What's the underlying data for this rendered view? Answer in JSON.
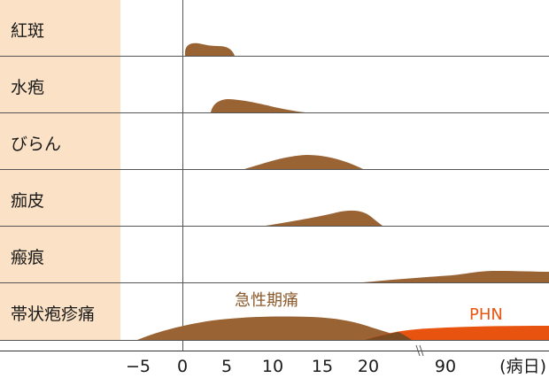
{
  "chart_data": {
    "type": "area",
    "title": "",
    "xlabel": "(病日)",
    "ylabel": "",
    "x_ticks": [
      "−5",
      "0",
      "5",
      "10",
      "15",
      "20",
      "90"
    ],
    "x_unit_label": "(病日)",
    "rows": [
      {
        "label": "紅斑",
        "onset": 0,
        "peak": 1.5,
        "end": 5.5
      },
      {
        "label": "水疱",
        "onset": 3,
        "peak": 5,
        "end": 13
      },
      {
        "label": "びらん",
        "onset": 7,
        "peak": 14,
        "end": 20
      },
      {
        "label": "痂皮",
        "onset": 9,
        "peak": 19,
        "end": 22
      },
      {
        "label": "瘢痕",
        "onset": 20,
        "peak": 90,
        "end": 100
      },
      {
        "label": "帯状疱疹痛",
        "onset": -5,
        "peak": 10,
        "end": 25
      }
    ],
    "annotations": [
      {
        "text": "急性期痛",
        "color": "#8a5a2b"
      },
      {
        "text": "PHN",
        "color": "#e8540f"
      }
    ],
    "colors": {
      "fill": "#9a6334",
      "phn": "#e8540f",
      "label_band": "#fbe1c5",
      "grid": "#555555"
    },
    "axis_break": true
  }
}
